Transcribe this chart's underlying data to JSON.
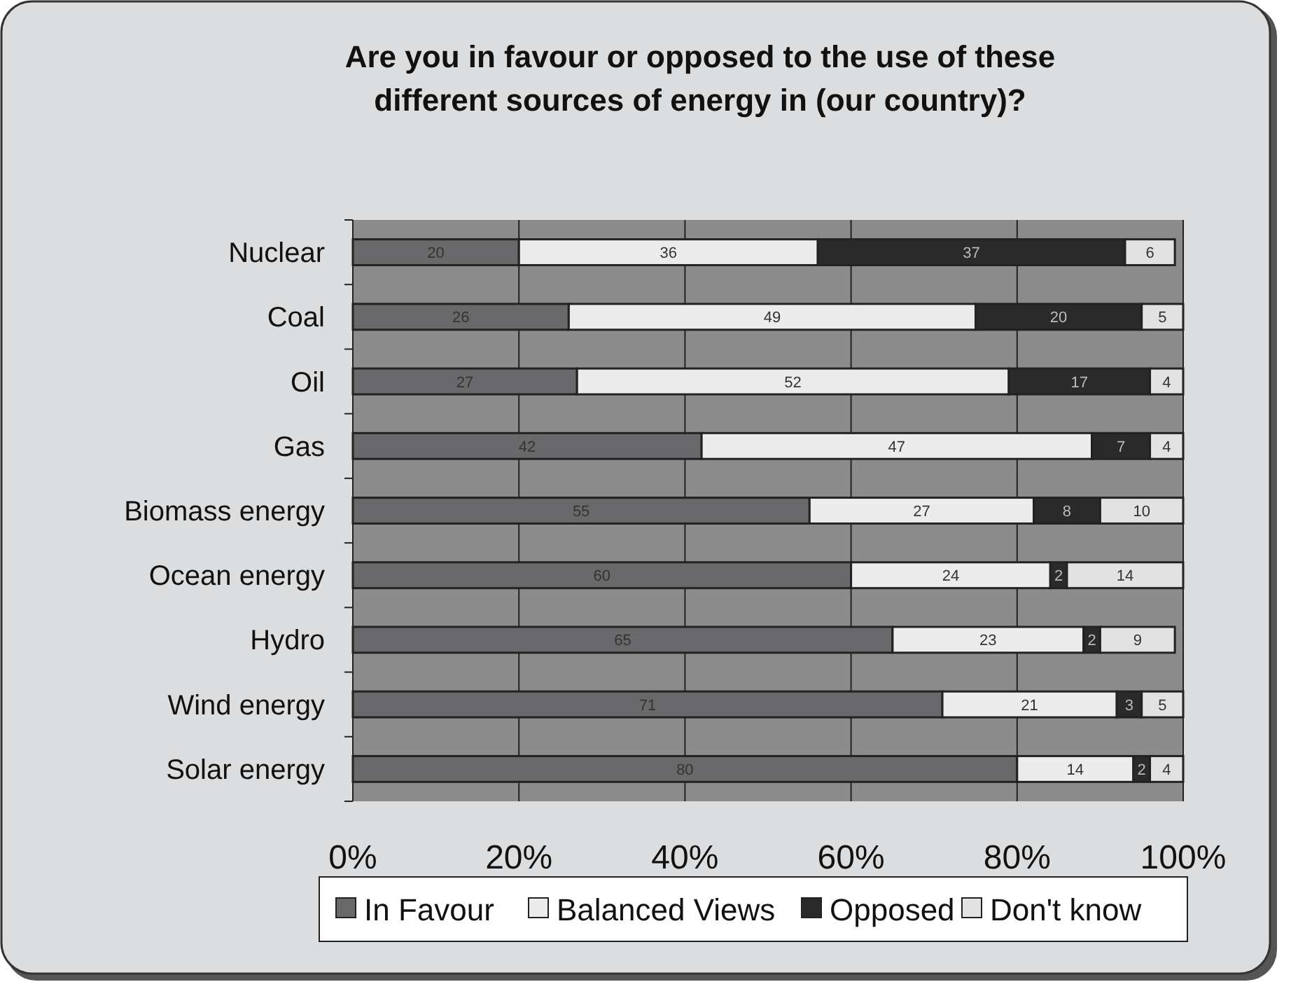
{
  "chart_data": {
    "type": "bar",
    "orientation": "horizontal",
    "stacked": true,
    "title": "Are you in favour or opposed to the use of these different sources of energy in (our country)?",
    "categories": [
      "Nuclear",
      "Coal",
      "Oil",
      "Gas",
      "Biomass energy",
      "Ocean energy",
      "Hydro",
      "Wind energy",
      "Solar energy"
    ],
    "series": [
      {
        "name": "In Favour",
        "color": "#69696b",
        "values": [
          20,
          26,
          27,
          42,
          55,
          60,
          65,
          71,
          80
        ]
      },
      {
        "name": "Balanced Views",
        "color": "#ececec",
        "values": [
          36,
          49,
          52,
          47,
          27,
          24,
          23,
          21,
          14
        ]
      },
      {
        "name": "Opposed",
        "color": "#2a2a2a",
        "values": [
          37,
          20,
          17,
          7,
          8,
          2,
          2,
          3,
          2
        ]
      },
      {
        "name": "Don't know",
        "color": "#e2e2e2",
        "values": [
          6,
          5,
          4,
          4,
          10,
          14,
          9,
          5,
          4
        ]
      }
    ],
    "xlim": [
      0,
      100
    ],
    "xticks": [
      {
        "value": 0,
        "label": "0%"
      },
      {
        "value": 20,
        "label": "20%"
      },
      {
        "value": 40,
        "label": "40%"
      },
      {
        "value": 60,
        "label": "60%"
      },
      {
        "value": 80,
        "label": "80%"
      },
      {
        "value": 100,
        "label": "100%"
      }
    ],
    "grid": "x",
    "legend": "bottom",
    "data_labels": true
  }
}
